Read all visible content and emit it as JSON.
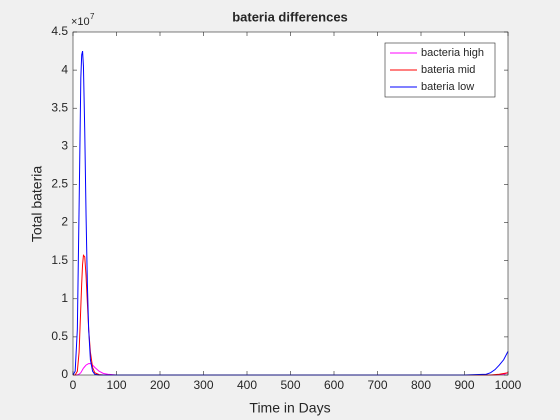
{
  "chart_data": {
    "type": "line",
    "title": "bateria differences",
    "xlabel": "Time in Days",
    "ylabel": "Total bateria",
    "y_multiplier": "×10",
    "y_exponent": "7",
    "x": [
      0,
      5,
      10,
      14,
      18,
      20,
      22,
      24,
      27,
      30,
      33,
      36,
      40,
      45,
      50,
      60,
      70,
      80,
      90,
      100,
      200,
      300,
      400,
      500,
      600,
      700,
      800,
      900,
      950,
      960,
      970,
      980,
      990,
      1000
    ],
    "series": [
      {
        "name": "bacteria high",
        "color": "#ff00ff",
        "values": [
          0,
          0,
          0,
          0.01,
          0.03,
          0.05,
          0.07,
          0.09,
          0.11,
          0.13,
          0.14,
          0.15,
          0.15,
          0.13,
          0.1,
          0.05,
          0.02,
          0.01,
          0.005,
          0,
          0,
          0,
          0,
          0,
          0,
          0,
          0,
          0,
          0,
          0,
          0,
          0.005,
          0.01,
          0.03
        ]
      },
      {
        "name": "bateria mid",
        "color": "#ff0000",
        "values": [
          0,
          0,
          0.05,
          0.3,
          0.9,
          1.2,
          1.45,
          1.57,
          1.55,
          1.3,
          0.95,
          0.6,
          0.3,
          0.1,
          0.03,
          0.005,
          0,
          0,
          0,
          0,
          0,
          0,
          0,
          0,
          0,
          0,
          0,
          0,
          0,
          0,
          0.005,
          0.01,
          0.02,
          0.03
        ]
      },
      {
        "name": "bateria low",
        "color": "#0000ff",
        "values": [
          0,
          0.05,
          0.6,
          2.2,
          3.9,
          4.2,
          4.25,
          4.05,
          3.2,
          2.1,
          1.2,
          0.6,
          0.2,
          0.05,
          0.01,
          0,
          0,
          0,
          0,
          0,
          0,
          0,
          0,
          0,
          0,
          0,
          0,
          0,
          0.01,
          0.03,
          0.07,
          0.13,
          0.2,
          0.31
        ]
      }
    ],
    "xlim": [
      0,
      1000
    ],
    "xticks": [
      0,
      100,
      200,
      300,
      400,
      500,
      600,
      700,
      800,
      900,
      1000
    ],
    "ylim": [
      0,
      4.5
    ],
    "yticks": [
      0,
      0.5,
      1,
      1.5,
      2,
      2.5,
      3,
      3.5,
      4,
      4.5
    ],
    "grid": false,
    "legend": "northeast"
  }
}
